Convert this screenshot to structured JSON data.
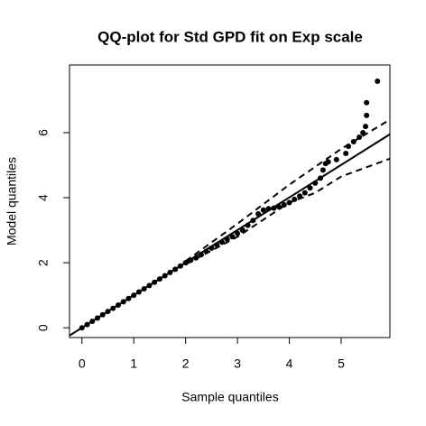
{
  "chart_data": {
    "type": "scatter",
    "title": "QQ-plot for Std GPD fit on Exp scale",
    "xlabel": "Sample quantiles",
    "ylabel": "Model quantiles",
    "xlim": [
      -0.24,
      5.94
    ],
    "ylim": [
      -0.3,
      8.08
    ],
    "xticks": [
      0,
      1,
      2,
      3,
      4,
      5
    ],
    "yticks": [
      0,
      2,
      4,
      6
    ],
    "series": [
      {
        "style": "points",
        "color": "#000000",
        "x": [
          0,
          0.1,
          0.2,
          0.3,
          0.4,
          0.5,
          0.6,
          0.7,
          0.8,
          0.9,
          1.0,
          1.1,
          1.2,
          1.3,
          1.4,
          1.5,
          1.6,
          1.7,
          1.8,
          1.9,
          2.0,
          2.1,
          2.2,
          2.3,
          2.4,
          2.5,
          2.6,
          2.7,
          2.8,
          2.9,
          3.0,
          3.1,
          3.2,
          3.3,
          3.4,
          3.5,
          3.6,
          3.7,
          3.8,
          3.9,
          4.0,
          4.1,
          4.2,
          4.3,
          4.4,
          4.5,
          4.6,
          4.65,
          4.7,
          4.75,
          4.91,
          5.09,
          5.14,
          5.24,
          5.35,
          5.42,
          5.47,
          5.49,
          5.49,
          5.7
        ],
        "values": [
          0,
          0.1,
          0.2,
          0.3,
          0.4,
          0.5,
          0.6,
          0.7,
          0.8,
          0.9,
          1.0,
          1.1,
          1.2,
          1.3,
          1.4,
          1.5,
          1.6,
          1.7,
          1.8,
          1.9,
          2.0,
          2.08,
          2.15,
          2.25,
          2.35,
          2.45,
          2.55,
          2.63,
          2.72,
          2.8,
          2.9,
          3.0,
          3.15,
          3.3,
          3.5,
          3.62,
          3.66,
          3.68,
          3.72,
          3.78,
          3.85,
          3.95,
          4.05,
          4.15,
          4.3,
          4.45,
          4.6,
          4.85,
          5.05,
          5.1,
          5.17,
          5.36,
          5.58,
          5.72,
          5.86,
          6.0,
          6.19,
          6.53,
          6.92,
          7.58
        ]
      },
      {
        "style": "solid",
        "color": "#000000",
        "x": [
          -0.24,
          5.94
        ],
        "values": [
          -0.24,
          5.95
        ]
      },
      {
        "style": "dashed",
        "color": "#000000",
        "x": [
          2.0,
          3.0,
          4.0,
          5.0,
          5.94
        ],
        "values": [
          2.05,
          3.2,
          4.4,
          5.5,
          6.4
        ]
      },
      {
        "style": "dashed",
        "color": "#000000",
        "x": [
          2.0,
          3.0,
          4.0,
          4.5,
          5.0,
          5.94
        ],
        "values": [
          1.95,
          2.8,
          3.85,
          4.15,
          4.65,
          5.2
        ]
      }
    ]
  }
}
